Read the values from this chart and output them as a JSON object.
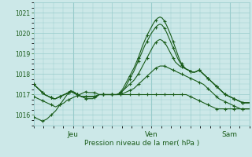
{
  "xlabel": "Pression niveau de la mer( hPa )",
  "bg_color": "#cce8e8",
  "plot_bg_color": "#cce8e8",
  "grid_color": "#99cccc",
  "line_color": "#1a5c1a",
  "ylim": [
    1015.5,
    1021.5
  ],
  "yticks": [
    1016,
    1017,
    1018,
    1019,
    1020,
    1021
  ],
  "xtick_labels": [
    "",
    "Jeu",
    "",
    "Ven",
    "",
    "Sam"
  ],
  "xtick_positions": [
    0,
    40,
    80,
    120,
    160,
    200
  ],
  "total_points": 220,
  "series": [
    {
      "data": [
        1016.9,
        1016.85,
        1016.8,
        1016.75,
        1016.7,
        1016.65,
        1016.6,
        1016.55,
        1016.5,
        1016.45,
        1016.4,
        1016.45,
        1016.5,
        1016.55,
        1016.6,
        1016.7,
        1016.75,
        1016.8,
        1016.85,
        1016.9,
        1016.95,
        1017.0,
        1017.05,
        1017.1,
        1017.15,
        1017.1,
        1017.1,
        1017.1,
        1017.1,
        1017.05,
        1017.0,
        1017.0,
        1017.0,
        1017.0,
        1017.0,
        1017.0,
        1017.0,
        1017.0,
        1017.0,
        1017.0,
        1017.0,
        1017.05,
        1017.1,
        1017.15,
        1017.2,
        1017.25,
        1017.3,
        1017.4,
        1017.5,
        1017.6,
        1017.7,
        1017.8,
        1017.9,
        1018.0,
        1018.1,
        1018.2,
        1018.3,
        1018.35,
        1018.4,
        1018.4,
        1018.4,
        1018.35,
        1018.3,
        1018.25,
        1018.2,
        1018.15,
        1018.1,
        1018.05,
        1018.0,
        1017.95,
        1017.9,
        1017.85,
        1017.8,
        1017.75,
        1017.7,
        1017.65,
        1017.6,
        1017.55,
        1017.5,
        1017.4,
        1017.3,
        1017.2,
        1017.1,
        1017.0,
        1016.9,
        1016.8,
        1016.75,
        1016.7,
        1016.65,
        1016.6,
        1016.55,
        1016.5,
        1016.45,
        1016.4,
        1016.35,
        1016.3,
        1016.3,
        1016.3,
        1016.3,
        1016.3
      ]
    },
    {
      "data": [
        1017.5,
        1017.4,
        1017.3,
        1017.2,
        1017.1,
        1017.0,
        1016.95,
        1016.9,
        1016.85,
        1016.8,
        1016.8,
        1016.85,
        1016.9,
        1016.95,
        1017.0,
        1017.05,
        1017.1,
        1017.15,
        1017.1,
        1017.05,
        1017.0,
        1016.95,
        1016.9,
        1016.9,
        1016.9,
        1016.9,
        1016.9,
        1016.9,
        1016.9,
        1016.95,
        1017.0,
        1017.0,
        1017.0,
        1017.0,
        1017.0,
        1017.0,
        1017.0,
        1017.0,
        1017.0,
        1017.0,
        1017.1,
        1017.2,
        1017.3,
        1017.4,
        1017.5,
        1017.6,
        1017.7,
        1017.85,
        1018.0,
        1018.2,
        1018.4,
        1018.6,
        1018.8,
        1019.0,
        1019.2,
        1019.4,
        1019.55,
        1019.65,
        1019.7,
        1019.65,
        1019.55,
        1019.4,
        1019.2,
        1019.0,
        1018.8,
        1018.6,
        1018.5,
        1018.4,
        1018.35,
        1018.3,
        1018.25,
        1018.2,
        1018.15,
        1018.1,
        1018.1,
        1018.15,
        1018.2,
        1018.1,
        1018.0,
        1017.9,
        1017.8,
        1017.7,
        1017.6,
        1017.5,
        1017.4,
        1017.3,
        1017.2,
        1017.1,
        1017.0,
        1016.95,
        1016.9,
        1016.85,
        1016.8,
        1016.75,
        1016.7,
        1016.65,
        1016.6,
        1016.6,
        1016.6,
        1016.6
      ]
    },
    {
      "data": [
        1017.5,
        1017.4,
        1017.3,
        1017.2,
        1017.1,
        1017.0,
        1016.95,
        1016.9,
        1016.85,
        1016.8,
        1016.8,
        1016.85,
        1016.9,
        1016.95,
        1017.0,
        1017.05,
        1017.1,
        1017.15,
        1017.1,
        1017.05,
        1017.0,
        1016.95,
        1016.9,
        1016.9,
        1016.9,
        1016.9,
        1016.9,
        1016.9,
        1016.9,
        1016.95,
        1017.0,
        1017.0,
        1017.0,
        1017.0,
        1017.0,
        1017.0,
        1017.0,
        1017.0,
        1017.0,
        1017.05,
        1017.15,
        1017.3,
        1017.5,
        1017.7,
        1017.9,
        1018.1,
        1018.3,
        1018.55,
        1018.8,
        1019.1,
        1019.4,
        1019.65,
        1019.9,
        1020.1,
        1020.3,
        1020.5,
        1020.65,
        1020.75,
        1020.8,
        1020.75,
        1020.6,
        1020.4,
        1020.15,
        1019.9,
        1019.6,
        1019.3,
        1019.0,
        1018.7,
        1018.5,
        1018.35,
        1018.25,
        1018.2,
        1018.15,
        1018.1,
        1018.1,
        1018.15,
        1018.2,
        1018.1,
        1018.0,
        1017.9,
        1017.8,
        1017.7,
        1017.6,
        1017.5,
        1017.4,
        1017.3,
        1017.2,
        1017.1,
        1017.0,
        1016.95,
        1016.9,
        1016.85,
        1016.8,
        1016.75,
        1016.7,
        1016.65,
        1016.6,
        1016.6,
        1016.6,
        1016.6
      ]
    },
    {
      "data": [
        1015.9,
        1015.85,
        1015.8,
        1015.75,
        1015.7,
        1015.75,
        1015.8,
        1015.9,
        1016.0,
        1016.1,
        1016.2,
        1016.35,
        1016.5,
        1016.65,
        1016.8,
        1016.95,
        1017.1,
        1017.2,
        1017.15,
        1017.1,
        1017.0,
        1016.95,
        1016.9,
        1016.85,
        1016.8,
        1016.8,
        1016.8,
        1016.8,
        1016.85,
        1016.9,
        1017.0,
        1017.0,
        1017.0,
        1017.0,
        1017.0,
        1017.0,
        1017.0,
        1017.0,
        1017.0,
        1017.0,
        1017.0,
        1017.0,
        1017.0,
        1017.0,
        1017.0,
        1017.0,
        1017.0,
        1017.0,
        1017.0,
        1017.0,
        1017.0,
        1017.0,
        1017.0,
        1017.0,
        1017.0,
        1017.0,
        1017.0,
        1017.0,
        1017.0,
        1017.0,
        1017.0,
        1017.0,
        1017.0,
        1017.0,
        1017.0,
        1017.0,
        1017.0,
        1017.0,
        1017.0,
        1017.0,
        1017.0,
        1016.95,
        1016.9,
        1016.85,
        1016.8,
        1016.75,
        1016.7,
        1016.65,
        1016.6,
        1016.55,
        1016.5,
        1016.45,
        1016.4,
        1016.35,
        1016.3,
        1016.3,
        1016.3,
        1016.3,
        1016.3,
        1016.3,
        1016.3,
        1016.3,
        1016.3,
        1016.3,
        1016.3,
        1016.3,
        1016.3,
        1016.3,
        1016.3,
        1016.3
      ]
    },
    {
      "data": [
        1017.5,
        1017.4,
        1017.3,
        1017.2,
        1017.1,
        1017.0,
        1016.95,
        1016.9,
        1016.85,
        1016.8,
        1016.8,
        1016.85,
        1016.9,
        1016.95,
        1017.0,
        1017.05,
        1017.1,
        1017.15,
        1017.1,
        1017.05,
        1017.0,
        1016.95,
        1016.9,
        1016.9,
        1016.9,
        1016.9,
        1016.9,
        1016.9,
        1016.9,
        1016.95,
        1017.0,
        1017.0,
        1017.0,
        1017.0,
        1017.0,
        1017.0,
        1017.0,
        1017.0,
        1017.0,
        1017.02,
        1017.1,
        1017.2,
        1017.35,
        1017.55,
        1017.75,
        1017.95,
        1018.15,
        1018.4,
        1018.65,
        1018.9,
        1019.15,
        1019.4,
        1019.6,
        1019.8,
        1020.0,
        1020.15,
        1020.3,
        1020.4,
        1020.45,
        1020.4,
        1020.25,
        1020.05,
        1019.8,
        1019.55,
        1019.3,
        1019.05,
        1018.8,
        1018.6,
        1018.45,
        1018.35,
        1018.25,
        1018.2,
        1018.15,
        1018.1,
        1018.1,
        1018.15,
        1018.2,
        1018.1,
        1018.0,
        1017.9,
        1017.8,
        1017.7,
        1017.6,
        1017.5,
        1017.4,
        1017.3,
        1017.2,
        1017.1,
        1017.0,
        1016.95,
        1016.9,
        1016.85,
        1016.8,
        1016.75,
        1016.7,
        1016.65,
        1016.6,
        1016.6,
        1016.6,
        1016.6
      ]
    }
  ]
}
